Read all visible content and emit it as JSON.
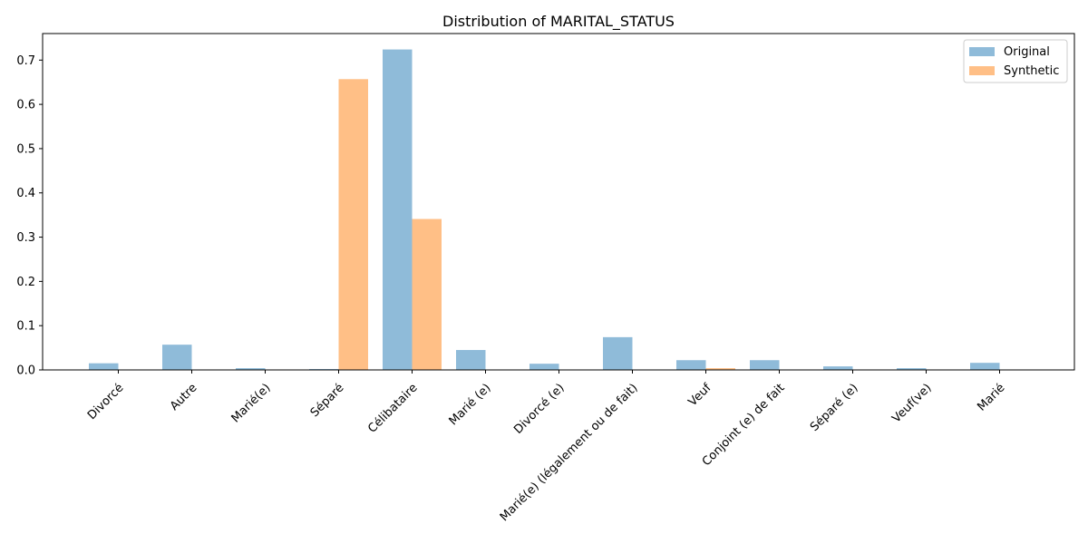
{
  "chart_data": {
    "type": "bar",
    "title": "Distribution of MARITAL_STATUS",
    "xlabel": "",
    "ylabel": "",
    "ylim": [
      0,
      0.76
    ],
    "yticks": [
      "0.0",
      "0.1",
      "0.2",
      "0.3",
      "0.4",
      "0.5",
      "0.6",
      "0.7"
    ],
    "categories": [
      "Divorcé",
      "Autre",
      "Marié(e)",
      "Séparé",
      "Célibataire",
      "Marié (e)",
      "Divorcé (e)",
      "Marié(e) (légalement ou de fait)",
      "Veuf",
      "Conjoint (e) de fait",
      "Séparé (e)",
      "Veuf(ve)",
      "Marié"
    ],
    "series": [
      {
        "name": "Original",
        "color": "#8fbbd9",
        "values": [
          0.015,
          0.057,
          0.004,
          0.002,
          0.724,
          0.045,
          0.014,
          0.074,
          0.022,
          0.022,
          0.008,
          0.004,
          0.016
        ]
      },
      {
        "name": "Synthetic",
        "color": "#ffbf86",
        "values": [
          0,
          0,
          0,
          0.657,
          0.341,
          0,
          0,
          0,
          0.004,
          0,
          0,
          0,
          0
        ]
      }
    ],
    "legend_position": "top-right",
    "grid": false
  }
}
